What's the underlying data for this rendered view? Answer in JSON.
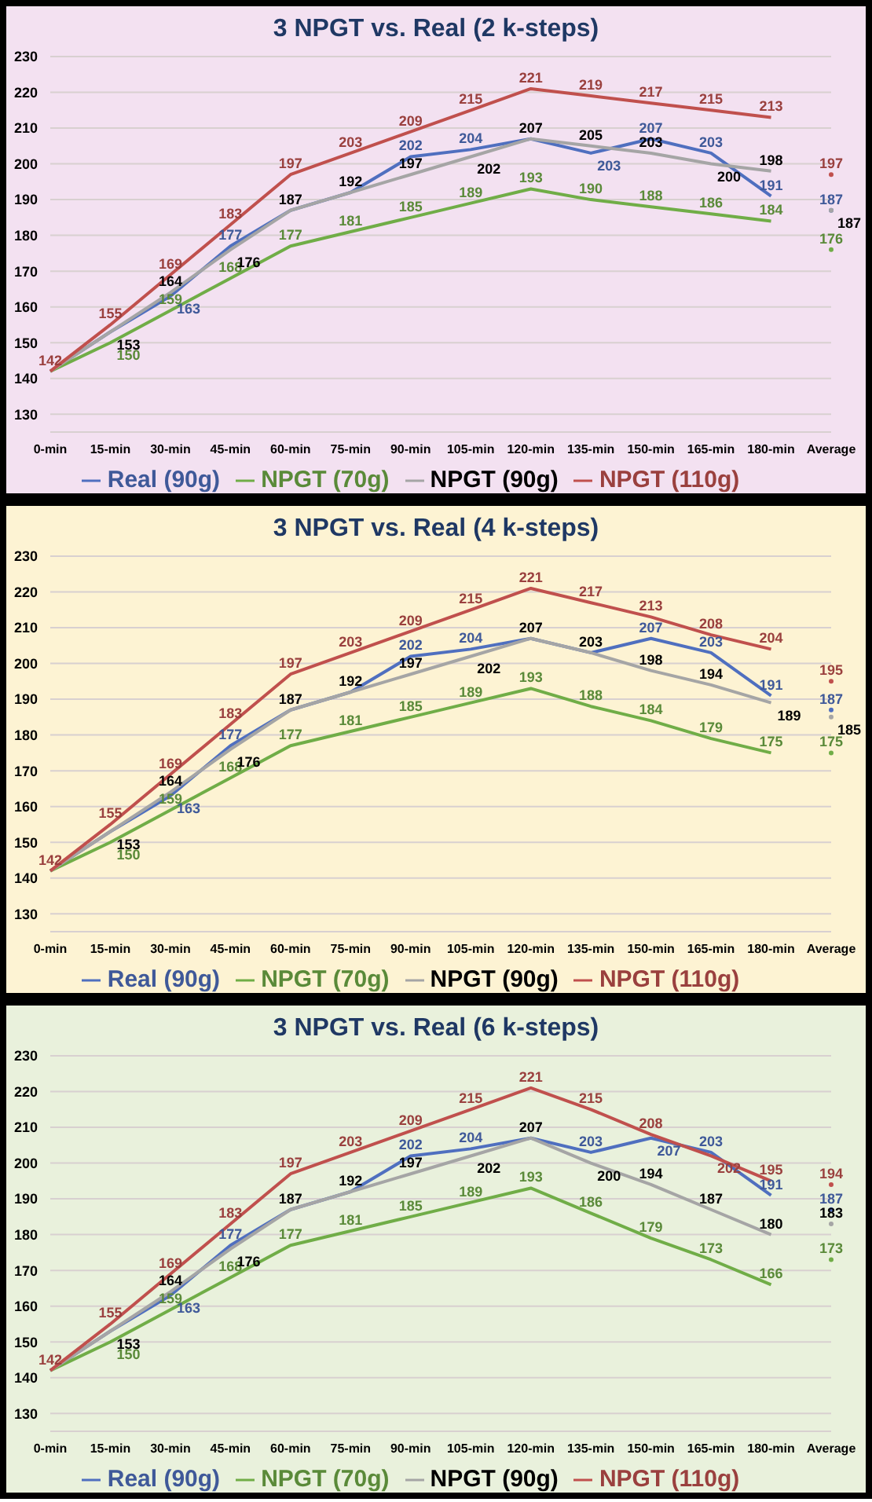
{
  "chart_data": [
    {
      "type": "line",
      "title": "3 NPGT vs. Real  (2 k-steps)",
      "categories": [
        "0-min",
        "15-min",
        "30-min",
        "45-min",
        "60-min",
        "75-min",
        "90-min",
        "105-min",
        "120-min",
        "135-min",
        "150-min",
        "165-min",
        "180-min",
        "Average"
      ],
      "ylim": [
        125,
        230
      ],
      "yticks": [
        130,
        140,
        150,
        160,
        170,
        180,
        190,
        200,
        210,
        220,
        230
      ],
      "grid": "y",
      "legend": "bottom",
      "data_labels": true,
      "series": [
        {
          "name": "Real (90g)",
          "color": "#4f6fbf",
          "values": [
            142,
            153,
            163,
            177,
            187,
            192,
            202,
            204,
            207,
            203,
            207,
            203,
            191,
            null
          ],
          "value_labels": [
            null,
            null,
            "163",
            "177",
            null,
            null,
            "202",
            "204",
            null,
            "203",
            "207",
            "203",
            "191",
            null
          ]
        },
        {
          "name": "NPGT (70g)",
          "color": "#70ad47",
          "values": [
            142,
            150,
            159,
            168,
            177,
            181,
            185,
            189,
            193,
            190,
            188,
            186,
            184,
            null
          ],
          "value_labels": [
            null,
            "150",
            "159",
            "168",
            "177",
            "181",
            "185",
            "189",
            "193",
            "190",
            "188",
            "186",
            "184",
            null
          ]
        },
        {
          "name": "NPGT (90g)",
          "color": "#a5a5a5",
          "values": [
            142,
            153,
            164,
            176,
            187,
            192,
            197,
            202,
            207,
            205,
            203,
            200,
            198,
            null
          ],
          "value_labels": [
            null,
            "153",
            "164",
            "176",
            "187",
            "192",
            "197",
            "202",
            "207",
            "205",
            "203",
            "200",
            "198",
            null
          ]
        },
        {
          "name": "NPGT (110g)",
          "color": "#c0504d",
          "values": [
            142,
            155,
            169,
            183,
            197,
            203,
            209,
            215,
            221,
            219,
            217,
            215,
            213,
            null
          ]
        },
        {
          "type": "scatter",
          "color": "#4f6fbf",
          "x": [
            "Average"
          ],
          "values": [
            187
          ],
          "marker": "circle"
        },
        {
          "type": "scatter",
          "color": "#70ad47",
          "x": [
            "Average"
          ],
          "values": [
            176
          ],
          "marker": "circle"
        },
        {
          "type": "scatter",
          "color": "#a5a5a5",
          "x": [
            "Average"
          ],
          "values": [
            187
          ],
          "marker": "circle"
        },
        {
          "type": "scatter",
          "color": "#c0504d",
          "x": [
            "Average"
          ],
          "values": [
            197
          ],
          "marker": "circle"
        }
      ]
    },
    {
      "type": "line",
      "title": "3 NPGT vs. Real  (4 k-steps)",
      "categories": [
        "0-min",
        "15-min",
        "30-min",
        "45-min",
        "60-min",
        "75-min",
        "90-min",
        "105-min",
        "120-min",
        "135-min",
        "150-min",
        "165-min",
        "180-min",
        "Average"
      ],
      "ylim": [
        125,
        230
      ],
      "yticks": [
        130,
        140,
        150,
        160,
        170,
        180,
        190,
        200,
        210,
        220,
        230
      ],
      "grid": "y",
      "legend": "bottom",
      "data_labels": true,
      "series": [
        {
          "name": "Real (90g)",
          "color": "#4f6fbf",
          "values": [
            142,
            153,
            163,
            177,
            187,
            192,
            202,
            204,
            207,
            203,
            207,
            203,
            191,
            null
          ],
          "value_labels": [
            null,
            null,
            "163",
            "177",
            null,
            null,
            "202",
            "204",
            null,
            null,
            "207",
            "203",
            "191",
            null
          ]
        },
        {
          "name": "NPGT (70g)",
          "color": "#70ad47",
          "values": [
            142,
            150,
            159,
            168,
            177,
            181,
            185,
            189,
            193,
            188,
            184,
            179,
            175,
            null
          ],
          "value_labels": [
            null,
            "150",
            "159",
            "168",
            "177",
            "181",
            "185",
            "189",
            "193",
            "188",
            "184",
            "179",
            "175",
            null
          ]
        },
        {
          "name": "NPGT (90g)",
          "color": "#a5a5a5",
          "values": [
            142,
            153,
            164,
            176,
            187,
            192,
            197,
            202,
            207,
            203,
            198,
            194,
            189,
            null
          ],
          "value_labels": [
            null,
            "153",
            "164",
            "176",
            "187",
            "192",
            "197",
            "202",
            "207",
            "203",
            "198",
            "194",
            "189",
            null
          ]
        },
        {
          "name": "NPGT (110g)",
          "color": "#c0504d",
          "values": [
            142,
            155,
            169,
            183,
            197,
            203,
            209,
            215,
            221,
            217,
            213,
            208,
            204,
            null
          ]
        },
        {
          "type": "scatter",
          "color": "#4f6fbf",
          "x": [
            "Average"
          ],
          "values": [
            187
          ],
          "marker": "circle"
        },
        {
          "type": "scatter",
          "color": "#70ad47",
          "x": [
            "Average"
          ],
          "values": [
            175
          ],
          "marker": "circle"
        },
        {
          "type": "scatter",
          "color": "#a5a5a5",
          "x": [
            "Average"
          ],
          "values": [
            185
          ],
          "marker": "circle"
        },
        {
          "type": "scatter",
          "color": "#c0504d",
          "x": [
            "Average"
          ],
          "values": [
            195
          ],
          "marker": "circle"
        }
      ]
    },
    {
      "type": "line",
      "title": "3 NPGT vs. Real  (6 k-steps)",
      "categories": [
        "0-min",
        "15-min",
        "30-min",
        "45-min",
        "60-min",
        "75-min",
        "90-min",
        "105-min",
        "120-min",
        "135-min",
        "150-min",
        "165-min",
        "180-min",
        "Average"
      ],
      "ylim": [
        125,
        230
      ],
      "yticks": [
        130,
        140,
        150,
        160,
        170,
        180,
        190,
        200,
        210,
        220,
        230
      ],
      "grid": "y",
      "legend": "bottom",
      "data_labels": true,
      "series": [
        {
          "name": "Real (90g)",
          "color": "#4f6fbf",
          "values": [
            142,
            153,
            163,
            177,
            187,
            192,
            202,
            204,
            207,
            203,
            207,
            203,
            191,
            null
          ],
          "value_labels": [
            null,
            null,
            "163",
            "177",
            null,
            null,
            "202",
            "204",
            null,
            "203",
            "207",
            "203",
            "191",
            null
          ]
        },
        {
          "name": "NPGT (70g)",
          "color": "#70ad47",
          "values": [
            142,
            150,
            159,
            168,
            177,
            181,
            185,
            189,
            193,
            186,
            179,
            173,
            166,
            null
          ],
          "value_labels": [
            null,
            "150",
            "159",
            "168",
            "177",
            "181",
            "185",
            "189",
            "193",
            "186",
            "179",
            "173",
            "166",
            null
          ]
        },
        {
          "name": "NPGT (90g)",
          "color": "#a5a5a5",
          "values": [
            142,
            153,
            164,
            176,
            187,
            192,
            197,
            202,
            207,
            200,
            194,
            187,
            180,
            null
          ],
          "value_labels": [
            null,
            "153",
            "164",
            "176",
            "187",
            "192",
            "197",
            "202",
            "207",
            "200",
            "194",
            "187",
            "180",
            null
          ]
        },
        {
          "name": "NPGT (110g)",
          "color": "#c0504d",
          "values": [
            142,
            155,
            169,
            183,
            197,
            203,
            209,
            215,
            221,
            215,
            208,
            202,
            195,
            null
          ]
        },
        {
          "type": "scatter",
          "color": "#4f6fbf",
          "x": [
            "Average"
          ],
          "values": [
            187
          ],
          "marker": "circle"
        },
        {
          "type": "scatter",
          "color": "#70ad47",
          "x": [
            "Average"
          ],
          "values": [
            173
          ],
          "marker": "circle"
        },
        {
          "type": "scatter",
          "color": "#a5a5a5",
          "x": [
            "Average"
          ],
          "values": [
            183
          ],
          "marker": "circle"
        },
        {
          "type": "scatter",
          "color": "#c0504d",
          "x": [
            "Average"
          ],
          "values": [
            194
          ],
          "marker": "circle"
        }
      ]
    }
  ]
}
